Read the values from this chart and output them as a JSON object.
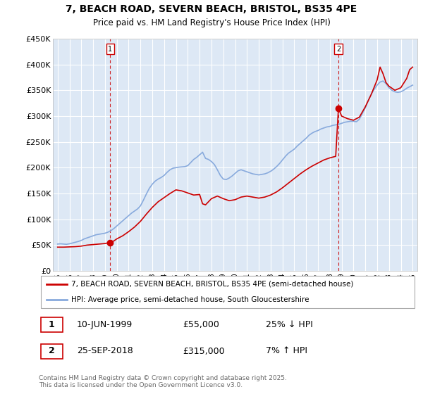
{
  "title": "7, BEACH ROAD, SEVERN BEACH, BRISTOL, BS35 4PE",
  "subtitle": "Price paid vs. HM Land Registry's House Price Index (HPI)",
  "legend_line1": "7, BEACH ROAD, SEVERN BEACH, BRISTOL, BS35 4PE (semi-detached house)",
  "legend_line2": "HPI: Average price, semi-detached house, South Gloucestershire",
  "footer": "Contains HM Land Registry data © Crown copyright and database right 2025.\nThis data is licensed under the Open Government Licence v3.0.",
  "sale1_date": 1999.44,
  "sale1_price": 55000,
  "sale1_label": "10-JUN-1999",
  "sale1_pct": "25% ↓ HPI",
  "sale2_date": 2018.73,
  "sale2_price": 315000,
  "sale2_label": "25-SEP-2018",
  "sale2_pct": "7% ↑ HPI",
  "property_color": "#cc0000",
  "hpi_color": "#88aadd",
  "background_color": "#dde8f5",
  "grid_color": "#ffffff",
  "marker_box_color": "#cc0000",
  "ylim": [
    0,
    450000
  ],
  "yticks": [
    0,
    50000,
    100000,
    150000,
    200000,
    250000,
    300000,
    350000,
    400000,
    450000
  ],
  "ytick_labels": [
    "£0",
    "£50K",
    "£100K",
    "£150K",
    "£200K",
    "£250K",
    "£300K",
    "£350K",
    "£400K",
    "£450K"
  ],
  "hpi_data": [
    [
      1995.0,
      52000
    ],
    [
      1995.25,
      52500
    ],
    [
      1995.5,
      52000
    ],
    [
      1995.75,
      51500
    ],
    [
      1996.0,
      52500
    ],
    [
      1996.25,
      54000
    ],
    [
      1996.5,
      55500
    ],
    [
      1996.75,
      57000
    ],
    [
      1997.0,
      59000
    ],
    [
      1997.25,
      62000
    ],
    [
      1997.5,
      64000
    ],
    [
      1997.75,
      66000
    ],
    [
      1998.0,
      68000
    ],
    [
      1998.25,
      70000
    ],
    [
      1998.5,
      71000
    ],
    [
      1998.75,
      72000
    ],
    [
      1999.0,
      73000
    ],
    [
      1999.25,
      75000
    ],
    [
      1999.5,
      78000
    ],
    [
      1999.75,
      82000
    ],
    [
      2000.0,
      87000
    ],
    [
      2000.25,
      92000
    ],
    [
      2000.5,
      97000
    ],
    [
      2000.75,
      102000
    ],
    [
      2001.0,
      107000
    ],
    [
      2001.25,
      112000
    ],
    [
      2001.5,
      116000
    ],
    [
      2001.75,
      120000
    ],
    [
      2002.0,
      126000
    ],
    [
      2002.25,
      137000
    ],
    [
      2002.5,
      149000
    ],
    [
      2002.75,
      160000
    ],
    [
      2003.0,
      168000
    ],
    [
      2003.25,
      174000
    ],
    [
      2003.5,
      178000
    ],
    [
      2003.75,
      181000
    ],
    [
      2004.0,
      185000
    ],
    [
      2004.25,
      191000
    ],
    [
      2004.5,
      196000
    ],
    [
      2004.75,
      199000
    ],
    [
      2005.0,
      200000
    ],
    [
      2005.25,
      201000
    ],
    [
      2005.5,
      201500
    ],
    [
      2005.75,
      202000
    ],
    [
      2006.0,
      204000
    ],
    [
      2006.25,
      210000
    ],
    [
      2006.5,
      216000
    ],
    [
      2006.75,
      220000
    ],
    [
      2007.0,
      225000
    ],
    [
      2007.25,
      230000
    ],
    [
      2007.5,
      218000
    ],
    [
      2007.75,
      216000
    ],
    [
      2008.0,
      212000
    ],
    [
      2008.25,
      206000
    ],
    [
      2008.5,
      196000
    ],
    [
      2008.75,
      185000
    ],
    [
      2009.0,
      178000
    ],
    [
      2009.25,
      177000
    ],
    [
      2009.5,
      180000
    ],
    [
      2009.75,
      184000
    ],
    [
      2010.0,
      189000
    ],
    [
      2010.25,
      194000
    ],
    [
      2010.5,
      196000
    ],
    [
      2010.75,
      194000
    ],
    [
      2011.0,
      192000
    ],
    [
      2011.25,
      190000
    ],
    [
      2011.5,
      188000
    ],
    [
      2011.75,
      187000
    ],
    [
      2012.0,
      186000
    ],
    [
      2012.25,
      187000
    ],
    [
      2012.5,
      188000
    ],
    [
      2012.75,
      190000
    ],
    [
      2013.0,
      193000
    ],
    [
      2013.25,
      197000
    ],
    [
      2013.5,
      202000
    ],
    [
      2013.75,
      208000
    ],
    [
      2014.0,
      215000
    ],
    [
      2014.25,
      222000
    ],
    [
      2014.5,
      228000
    ],
    [
      2014.75,
      232000
    ],
    [
      2015.0,
      236000
    ],
    [
      2015.25,
      242000
    ],
    [
      2015.5,
      247000
    ],
    [
      2015.75,
      252000
    ],
    [
      2016.0,
      257000
    ],
    [
      2016.25,
      263000
    ],
    [
      2016.5,
      267000
    ],
    [
      2016.75,
      270000
    ],
    [
      2017.0,
      272000
    ],
    [
      2017.25,
      275000
    ],
    [
      2017.5,
      277000
    ],
    [
      2017.75,
      279000
    ],
    [
      2018.0,
      280000
    ],
    [
      2018.25,
      282000
    ],
    [
      2018.5,
      283000
    ],
    [
      2018.75,
      284000
    ],
    [
      2019.0,
      286000
    ],
    [
      2019.25,
      288000
    ],
    [
      2019.5,
      289000
    ],
    [
      2019.75,
      290000
    ],
    [
      2020.0,
      290000
    ],
    [
      2020.25,
      289000
    ],
    [
      2020.5,
      294000
    ],
    [
      2020.75,
      305000
    ],
    [
      2021.0,
      316000
    ],
    [
      2021.25,
      330000
    ],
    [
      2021.5,
      342000
    ],
    [
      2021.75,
      352000
    ],
    [
      2022.0,
      360000
    ],
    [
      2022.25,
      366000
    ],
    [
      2022.5,
      368000
    ],
    [
      2022.75,
      363000
    ],
    [
      2023.0,
      355000
    ],
    [
      2023.25,
      350000
    ],
    [
      2023.5,
      347000
    ],
    [
      2023.75,
      346000
    ],
    [
      2024.0,
      347000
    ],
    [
      2024.25,
      350000
    ],
    [
      2024.5,
      354000
    ],
    [
      2024.75,
      357000
    ],
    [
      2025.0,
      360000
    ]
  ],
  "property_data": [
    [
      1995.0,
      46000
    ],
    [
      1995.5,
      46000
    ],
    [
      1996.0,
      46500
    ],
    [
      1996.5,
      47000
    ],
    [
      1997.0,
      48000
    ],
    [
      1997.5,
      50000
    ],
    [
      1998.0,
      51000
    ],
    [
      1998.5,
      52000
    ],
    [
      1999.0,
      53000
    ],
    [
      1999.44,
      55000
    ],
    [
      1999.75,
      58000
    ],
    [
      2000.0,
      62000
    ],
    [
      2000.5,
      68000
    ],
    [
      2001.0,
      76000
    ],
    [
      2001.5,
      85000
    ],
    [
      2002.0,
      96000
    ],
    [
      2002.5,
      110000
    ],
    [
      2003.0,
      123000
    ],
    [
      2003.5,
      134000
    ],
    [
      2004.0,
      142000
    ],
    [
      2004.5,
      150000
    ],
    [
      2005.0,
      157000
    ],
    [
      2005.5,
      155000
    ],
    [
      2006.0,
      151000
    ],
    [
      2006.5,
      147000
    ],
    [
      2007.0,
      148000
    ],
    [
      2007.25,
      130000
    ],
    [
      2007.5,
      128000
    ],
    [
      2008.0,
      140000
    ],
    [
      2008.5,
      145000
    ],
    [
      2009.0,
      140000
    ],
    [
      2009.5,
      136000
    ],
    [
      2010.0,
      138000
    ],
    [
      2010.5,
      143000
    ],
    [
      2011.0,
      145000
    ],
    [
      2011.5,
      143000
    ],
    [
      2012.0,
      141000
    ],
    [
      2012.5,
      143000
    ],
    [
      2013.0,
      147000
    ],
    [
      2013.5,
      153000
    ],
    [
      2014.0,
      161000
    ],
    [
      2014.5,
      170000
    ],
    [
      2015.0,
      179000
    ],
    [
      2015.5,
      188000
    ],
    [
      2016.0,
      196000
    ],
    [
      2016.5,
      203000
    ],
    [
      2017.0,
      209000
    ],
    [
      2017.5,
      215000
    ],
    [
      2018.0,
      219000
    ],
    [
      2018.5,
      222000
    ],
    [
      2018.73,
      315000
    ],
    [
      2019.0,
      300000
    ],
    [
      2019.5,
      295000
    ],
    [
      2020.0,
      292000
    ],
    [
      2020.5,
      298000
    ],
    [
      2021.0,
      318000
    ],
    [
      2021.5,
      342000
    ],
    [
      2022.0,
      370000
    ],
    [
      2022.25,
      395000
    ],
    [
      2022.5,
      382000
    ],
    [
      2022.75,
      365000
    ],
    [
      2023.0,
      358000
    ],
    [
      2023.5,
      350000
    ],
    [
      2024.0,
      355000
    ],
    [
      2024.5,
      373000
    ],
    [
      2024.75,
      390000
    ],
    [
      2025.0,
      395000
    ]
  ]
}
